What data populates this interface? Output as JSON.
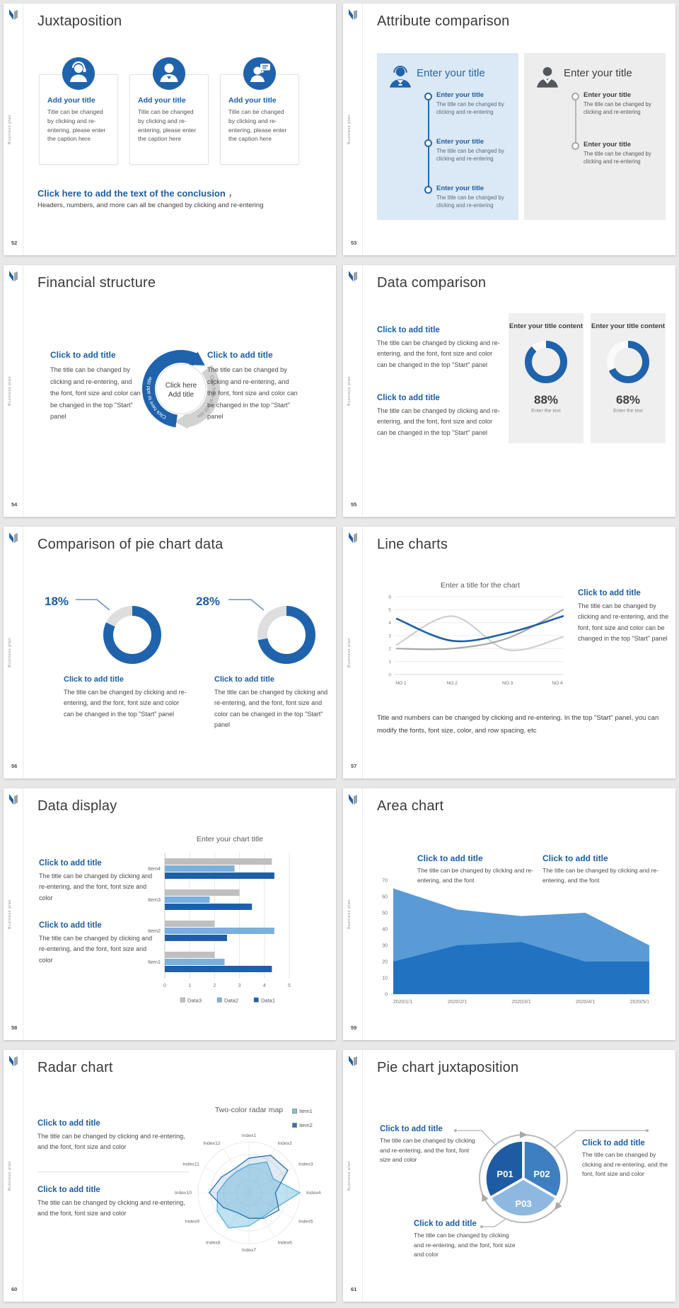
{
  "window": {
    "background": "#e8e8e8"
  },
  "brand": {
    "vertical_label": "Business plan"
  },
  "colors": {
    "accent_blue": "#1c5da5",
    "chart_blue": "#1f63ad",
    "light_blue": "#7bafdd",
    "bar_gray": "#bfbfbf",
    "area_light": "#5b9bd5",
    "area_dark": "#2173c2",
    "panel_blue_bg": "#dbe8f5",
    "panel_gray_bg": "#ededed",
    "card_gray_bg": "#efefef",
    "pie_p01": "#1e5ba3",
    "pie_p02": "#3d7fc1",
    "pie_p03": "#8fb8e0",
    "radar_item1": "#7ec6e3",
    "radar_item2": "#2e75b6"
  },
  "slides": [
    {
      "number": "52",
      "title": "Juxtaposition",
      "cards": [
        {
          "icon": "support-agent-icon",
          "heading": "Add your title",
          "body": "Title can be changed by clicking and re-entering, please enter the caption here"
        },
        {
          "icon": "person-icon",
          "heading": "Add your title",
          "body": "Title can be changed by clicking and re-entering, please enter the caption here"
        },
        {
          "icon": "consultation-icon",
          "heading": "Add your title",
          "body": "Title can be changed by clicking and re-entering, please enter the caption here"
        }
      ],
      "conclusion_heading": "Click here to add the text of the conclusion",
      "conclusion_comma": "，",
      "conclusion_body": "Headers, numbers, and more can all be changed by clicking and re-entering"
    },
    {
      "number": "53",
      "title": "Attribute comparison",
      "left_panel": {
        "heading": "Enter your title",
        "items": [
          {
            "heading": "Enter your title",
            "body": "The title can be changed by clicking and re-entering"
          },
          {
            "heading": "Enter your title",
            "body": "The title can be changed by clicking and re-entering"
          },
          {
            "heading": "Enter your title",
            "body": "The title can be changed by clicking and re-entering"
          }
        ]
      },
      "right_panel": {
        "heading": "Enter your title",
        "items": [
          {
            "heading": "Enter your title",
            "body": "The title can be changed by clicking and re-entering"
          },
          {
            "heading": "Enter your title",
            "body": "The title can be changed by clicking and re-entering"
          }
        ]
      }
    },
    {
      "number": "54",
      "title": "Financial structure",
      "left_block": {
        "heading": "Click to add title",
        "body": "The title can be changed by clicking and re-entering, and the font, font size and color can be changed in the top \"Start\" panel"
      },
      "right_block": {
        "heading": "Click to add title",
        "body": "The title can be changed by clicking and re-entering, and the font, font size and color can be changed in the top \"Start\" panel"
      },
      "cycle": {
        "center_line1": "Click here",
        "center_line2": "Add title",
        "arc_text": "Click here to add title"
      }
    },
    {
      "number": "55",
      "title": "Data comparison",
      "blocks": [
        {
          "heading": "Click to add title",
          "body": "The title can be changed by clicking and re-entering, and the font, font size and color can be changed in the top \"Start\" panel"
        },
        {
          "heading": "Click to add title",
          "body": "The title can be changed by clicking and re-entering, and the font, font size and color can be changed in the top \"Start\" panel"
        }
      ],
      "cards": [
        {
          "title": "Enter your title content",
          "percent": "88%",
          "value": 88,
          "caption": "Enter the text"
        },
        {
          "title": "Enter your title content",
          "percent": "68%",
          "value": 68,
          "caption": "Enter the text"
        }
      ]
    },
    {
      "number": "56",
      "title": "Comparison of pie chart data",
      "donuts": [
        {
          "label": "18%",
          "gray_percent": 18,
          "blue_percent": 82,
          "heading": "Click to add title",
          "body": "The title can be changed by clicking and re-entering, and the font, font size and color can be changed in the top \"Start\" panel"
        },
        {
          "label": "28%",
          "gray_percent": 28,
          "blue_percent": 72,
          "heading": "Click to add title",
          "body": "The title can be changed by clicking and re-entering, and the font, font size and color can be changed in the top \"Start\" panel"
        }
      ]
    },
    {
      "number": "57",
      "title": "Line charts",
      "chart": {
        "type": "line",
        "title": "Enter a title for the chart",
        "x_labels": [
          "NO.1",
          "NO.2",
          "NO.3",
          "NO.4"
        ],
        "ylim": [
          0,
          6
        ],
        "y_ticks": [
          0,
          1,
          2,
          3,
          4,
          5,
          6
        ],
        "series": [
          {
            "name": "series-light-gray",
            "color": "#cfcfcf",
            "values": [
              2.3,
              4.5,
              1.9,
              2.9
            ]
          },
          {
            "name": "series-gray",
            "color": "#a8a8a8",
            "values": [
              2.0,
              2.0,
              2.8,
              5.0
            ]
          },
          {
            "name": "series-blue",
            "color": "#1f5fa9",
            "width": 2.6,
            "values": [
              4.3,
              2.6,
              3.2,
              4.5
            ]
          }
        ]
      },
      "side_block": {
        "heading": "Click to add title",
        "body": "The title can be changed by clicking and re-entering, and the font, font size and color can be changed in the top \"Start\" panel"
      },
      "footer": "Title and numbers can be changed by clicking and re-entering. In the top \"Start\" panel, you can modify the fonts, font size, color, and row spacing, etc"
    },
    {
      "number": "58",
      "title": "Data display",
      "blocks": [
        {
          "heading": "Click to add title",
          "body": "The title can be changed by clicking and re-entering, and the font, font size and color"
        },
        {
          "heading": "Click to add title",
          "body": "The title can be changed by clicking and re-entering, and the font, font size and color"
        }
      ],
      "chart": {
        "type": "bar",
        "title": "Enter your chart title",
        "categories": [
          "Item4",
          "Item3",
          "Item2",
          "Item1"
        ],
        "xlim": [
          0,
          5
        ],
        "x_ticks": [
          0,
          1,
          2,
          3,
          4,
          5
        ],
        "series": [
          {
            "name": "Data3",
            "color": "#bfbfbf",
            "values": [
              4.3,
              3.0,
              2.0,
              2.0
            ]
          },
          {
            "name": "Data2",
            "color": "#7bafdd",
            "values": [
              2.8,
              1.8,
              4.4,
              2.4
            ]
          },
          {
            "name": "Data1",
            "color": "#1f5fa9",
            "values": [
              4.4,
              3.5,
              2.5,
              4.3
            ]
          }
        ],
        "legend": [
          "Data3",
          "Data2",
          "Data1"
        ]
      }
    },
    {
      "number": "59",
      "title": "Area chart",
      "blocks": [
        {
          "heading": "Click to add title",
          "body": "The title can be changed by clicking and re-entering, and the font"
        },
        {
          "heading": "Click to add title",
          "body": "The title can be changed by clicking and re-entering, and the font"
        }
      ],
      "chart": {
        "type": "area",
        "x_labels": [
          "2020/1/1",
          "2020/2/1",
          "2020/3/1",
          "2020/4/1",
          "2020/5/1"
        ],
        "ylim": [
          0,
          70
        ],
        "y_ticks": [
          0,
          10,
          20,
          30,
          40,
          50,
          60,
          70
        ],
        "series": [
          {
            "name": "upper",
            "color": "#5b9bd5",
            "values": [
              65,
              52,
              48,
              50,
              30
            ]
          },
          {
            "name": "lower",
            "color": "#2173c2",
            "values": [
              20,
              30,
              32,
              20,
              20
            ]
          }
        ]
      }
    },
    {
      "number": "60",
      "title": "Radar chart",
      "blocks": [
        {
          "heading": "Click to add title",
          "body": "The title can be changed by clicking and re-entering, and the font, font size and color"
        },
        {
          "heading": "Click to add title",
          "body": "The title can be changed by clicking and re-entering, and the font, font size and color"
        }
      ],
      "chart": {
        "type": "radar",
        "title": "Two-color radar map",
        "axes": [
          "Index1",
          "Index2",
          "Index3",
          "Index4",
          "Index5",
          "Index6",
          "Index7",
          "Index8",
          "Index9",
          "Index10",
          "Index11",
          "Index12"
        ],
        "legend": [
          {
            "name": "Item1",
            "color": "#7ec6e3"
          },
          {
            "name": "Item2",
            "color": "#2e75b6"
          }
        ],
        "series": [
          {
            "name": "Item1",
            "color": "#5fb4d9",
            "values": [
              0.55,
              0.7,
              0.55,
              1.0,
              0.6,
              0.55,
              0.65,
              0.8,
              0.72,
              0.62,
              0.5,
              0.48
            ]
          },
          {
            "name": "Item2",
            "color": "#2e75b6",
            "values": [
              0.68,
              0.85,
              0.88,
              0.52,
              0.68,
              0.58,
              0.5,
              0.45,
              0.58,
              0.78,
              0.62,
              0.55
            ]
          }
        ]
      }
    },
    {
      "number": "61",
      "title": "Pie chart juxtaposition",
      "segments": [
        {
          "label": "P01",
          "color": "#1e5ba3"
        },
        {
          "label": "P02",
          "color": "#3d7fc1"
        },
        {
          "label": "P03",
          "color": "#8fb8e0"
        }
      ],
      "callouts": [
        {
          "heading": "Click to add title",
          "body": "The title can be changed by clicking and re-entering, and the font, font size and color"
        },
        {
          "heading": "Click to add title",
          "body": "The title can be changed by clicking and re-entering, and the font, font size and color"
        },
        {
          "heading": "Click to add title",
          "body": "The title can be changed by clicking and re-entering, and the font, font size and color"
        }
      ]
    }
  ]
}
